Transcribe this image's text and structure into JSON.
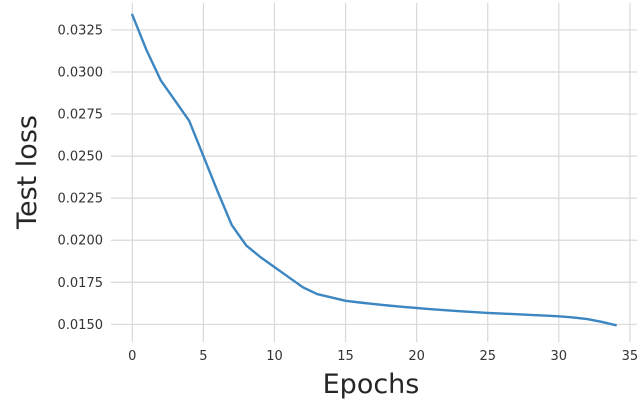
{
  "chart_data": {
    "type": "line",
    "title": "",
    "xlabel": "Epochs",
    "ylabel": "Test loss",
    "xlim": [
      -1.5,
      35.5
    ],
    "ylim": [
      0.01395,
      0.0341
    ],
    "xticks": [
      0,
      5,
      10,
      15,
      20,
      25,
      30,
      35
    ],
    "yticks": [
      0.015,
      0.0175,
      0.02,
      0.0225,
      0.025,
      0.0275,
      0.03,
      0.0325
    ],
    "xtick_labels": [
      "0",
      "5",
      "10",
      "15",
      "20",
      "25",
      "30",
      "35"
    ],
    "ytick_labels": [
      "0.0150",
      "0.0175",
      "0.0200",
      "0.0225",
      "0.0250",
      "0.0275",
      "0.0300",
      "0.0325"
    ],
    "grid": true,
    "series": [
      {
        "color": "#3c86c2",
        "x": [
          0,
          1,
          2,
          3,
          4,
          5,
          6,
          7,
          8,
          9,
          10,
          11,
          12,
          13,
          14,
          15,
          16,
          17,
          18,
          19,
          20,
          21,
          22,
          23,
          24,
          25,
          26,
          27,
          28,
          29,
          30,
          31,
          32,
          33,
          34
        ],
        "y": [
          0.0334,
          0.0313,
          0.0295,
          0.0283,
          0.0271,
          0.025,
          0.0229,
          0.0209,
          0.0197,
          0.019,
          0.0184,
          0.0178,
          0.0172,
          0.0168,
          0.0166,
          0.0164,
          0.0163,
          0.0162,
          0.01612,
          0.01604,
          0.01597,
          0.0159,
          0.01584,
          0.01578,
          0.01573,
          0.01568,
          0.01564,
          0.0156,
          0.01556,
          0.01552,
          0.01548,
          0.01541,
          0.01531,
          0.01515,
          0.01495
        ]
      }
    ]
  }
}
